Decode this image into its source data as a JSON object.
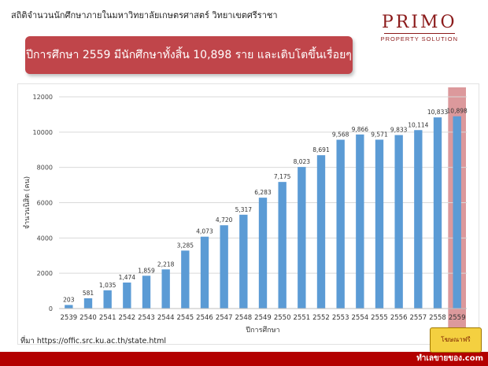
{
  "header": {
    "title": "สถิติจำนวนนักศึกษาภายในมหาวิทยาลัยเกษตรศาสตร์ วิทยาเขตศรีราชา",
    "brand_name": "PRIMO",
    "brand_sub": "PROPERTY SOLUTION"
  },
  "banner": {
    "text": "ปีการศึกษา 2559 มีนักศึกษาทั้งสิ้น 10,898 ราย และเติบโตขึ้นเรื่อยๆ"
  },
  "source": {
    "text": "ที่มา https://offic.src.ku.ac.th/state.html"
  },
  "watermark": {
    "badge": "โฆษณาฟรี",
    "text": "ทำเลขายของ.com"
  },
  "colors": {
    "bar": "#5b9bd5",
    "highlight": "#c0454a",
    "banner": "#c0454a",
    "accent_red": "#b30000"
  },
  "chart_data": {
    "type": "bar",
    "title": "",
    "xlabel": "ปีการศึกษา",
    "ylabel": "จำนวนนิสิต (คน)",
    "ylim": [
      0,
      12000
    ],
    "yticks": [
      0,
      2000,
      4000,
      6000,
      8000,
      10000,
      12000
    ],
    "grid": true,
    "categories": [
      "2539",
      "2540",
      "2541",
      "2542",
      "2543",
      "2544",
      "2545",
      "2546",
      "2547",
      "2548",
      "2549",
      "2550",
      "2551",
      "2552",
      "2553",
      "2554",
      "2555",
      "2556",
      "2557",
      "2558",
      "2559"
    ],
    "values": [
      203,
      581,
      1035,
      1474,
      1859,
      2218,
      3285,
      4073,
      4720,
      5317,
      6283,
      7175,
      8023,
      8691,
      9568,
      9866,
      9571,
      9833,
      10114,
      10833,
      10898
    ],
    "labels": [
      "203",
      "581",
      "1,035",
      "1,474",
      "1,859",
      "2,218",
      "3,285",
      "4,073",
      "4,720",
      "5,317",
      "6,283",
      "7,175",
      "8,023",
      "8,691",
      "9,568",
      "9,866",
      "9,571",
      "9,833",
      "10,114",
      "10,833",
      "10,898"
    ],
    "highlight_category": "2559"
  }
}
